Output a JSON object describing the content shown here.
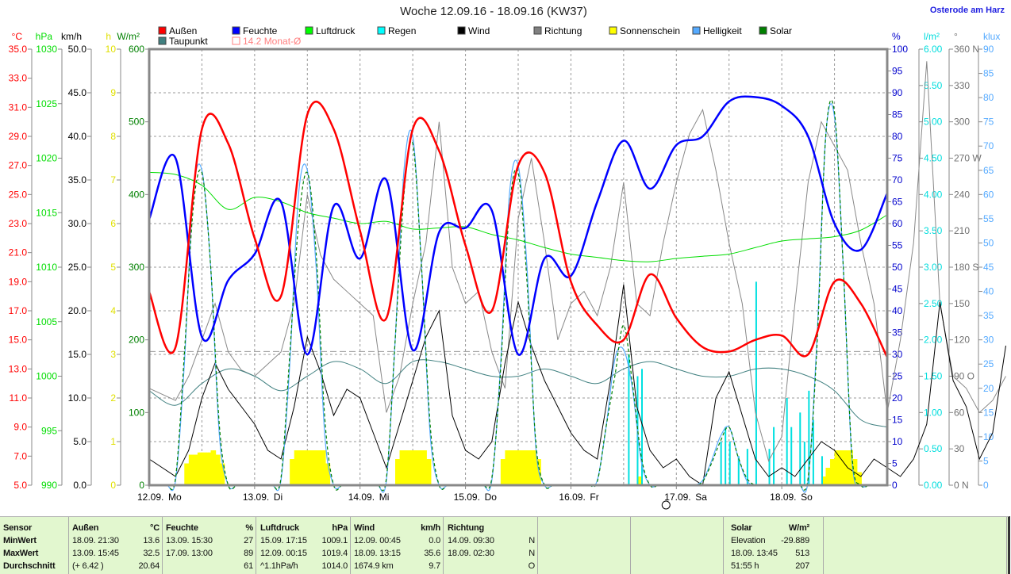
{
  "header": {
    "title": "Woche 12.09.16 - 18.09.16 (KW37)",
    "location": "Osterode am Harz"
  },
  "legend": [
    {
      "label": "Außen",
      "color": "#ff0000"
    },
    {
      "label": "Feuchte",
      "color": "#0000ff"
    },
    {
      "label": "Luftdruck",
      "color": "#00ff00"
    },
    {
      "label": "Regen",
      "color": "#00ffff"
    },
    {
      "label": "Wind",
      "color": "#000000"
    },
    {
      "label": "Richtung",
      "color": "#808080"
    },
    {
      "label": "Sonnenschein",
      "color": "#ffff00"
    },
    {
      "label": "Helligkeit",
      "color": "#55aaff"
    },
    {
      "label": "Solar",
      "color": "#008000"
    },
    {
      "label": "Taupunkt",
      "color": "#408080"
    },
    {
      "label": "14.2 Monat-Ø",
      "color": "#ff8080"
    }
  ],
  "chart_data": {
    "type": "line",
    "title": "Woche 12.09.16 - 18.09.16 (KW37)",
    "x_labels": [
      {
        "date": "12.09.",
        "day": "Mo"
      },
      {
        "date": "13.09.",
        "day": "Di"
      },
      {
        "date": "14.09.",
        "day": "Mi"
      },
      {
        "date": "15.09.",
        "day": "Do"
      },
      {
        "date": "16.09.",
        "day": "Fr"
      },
      {
        "date": "17.09.",
        "day": "Sa"
      },
      {
        "date": "18.09.",
        "day": "So"
      }
    ],
    "axes": {
      "temp": {
        "unit": "°C",
        "range": [
          5,
          35
        ],
        "step": 2,
        "color": "#ff0000"
      },
      "pressure": {
        "unit": "hPa",
        "range": [
          990,
          1030
        ],
        "step": 5,
        "color": "#00dd00"
      },
      "wind": {
        "unit": "km/h",
        "range": [
          0,
          50
        ],
        "step": 5,
        "color": "#000000"
      },
      "sunshine": {
        "unit": "h",
        "range": [
          0,
          10
        ],
        "step": 1,
        "color": "#dddd00"
      },
      "solar": {
        "unit": "W/m²",
        "range": [
          0,
          600
        ],
        "step": 100,
        "color": "#008000"
      },
      "humidity": {
        "unit": "%",
        "range": [
          0,
          100
        ],
        "step": 5,
        "color": "#0000cc"
      },
      "rain": {
        "unit": "l/m²",
        "range": [
          0,
          6
        ],
        "step": 0.5,
        "color": "#00dddd"
      },
      "direction": {
        "unit": "°",
        "range": [
          0,
          360
        ],
        "step": 30,
        "color": "#707070",
        "compass": {
          "0": "N",
          "90": "O",
          "180": "S",
          "270": "W",
          "360": "N"
        }
      },
      "brightness": {
        "unit": "klux",
        "range": [
          0,
          90
        ],
        "step": 5,
        "color": "#55aaff"
      }
    },
    "month_avg_temp": 14.2,
    "interval_hours": 6,
    "series": [
      {
        "name": "Außen",
        "axis": "temp",
        "values": [
          18.3,
          14.5,
          29.5,
          28.5,
          22.0,
          18.0,
          30.5,
          29.5,
          22.5,
          16.5,
          29.5,
          28.0,
          21.5,
          17.0,
          27.0,
          26.5,
          19.0,
          16.0,
          15.0,
          19.5,
          16.5,
          14.5,
          14.2,
          15.0,
          15.3,
          14.0,
          19.0,
          17.5,
          13.8
        ]
      },
      {
        "name": "Feuchte",
        "axis": "humidity",
        "values": [
          61,
          75,
          34,
          47,
          53,
          65,
          30,
          64,
          52,
          70,
          31,
          58,
          59,
          63,
          30,
          52,
          48,
          65,
          79,
          68,
          78,
          80,
          88,
          89,
          87,
          80,
          60,
          54,
          67
        ]
      },
      {
        "name": "Luftdruck",
        "axis": "pressure",
        "values": [
          1018.7,
          1018.5,
          1017.5,
          1015.3,
          1016.4,
          1016.0,
          1015.0,
          1014.5,
          1014.0,
          1014.2,
          1013.5,
          1013.6,
          1013.7,
          1013.0,
          1012.5,
          1011.8,
          1011.2,
          1010.9,
          1010.6,
          1010.5,
          1010.8,
          1011.0,
          1011.2,
          1011.8,
          1012.4,
          1012.6,
          1012.8,
          1013.4,
          1014.8
        ]
      },
      {
        "name": "Taupunkt",
        "axis": "temp",
        "values": [
          11.5,
          10.5,
          12.0,
          13.0,
          12.5,
          11.5,
          12.5,
          13.5,
          13.0,
          12.0,
          13.5,
          13.5,
          13.0,
          12.5,
          12.5,
          13.0,
          12.5,
          12.0,
          13.0,
          13.5,
          13.0,
          12.5,
          12.5,
          13.0,
          13.0,
          12.5,
          11.5,
          9.5,
          9.0
        ]
      },
      {
        "name": "Wind",
        "axis": "wind",
        "interval_hours": 3,
        "values": [
          3,
          2,
          1,
          4,
          10,
          14,
          11,
          9,
          7,
          4,
          3,
          9,
          17,
          13,
          8,
          11,
          10,
          6,
          2,
          7,
          12,
          17,
          20,
          8,
          4,
          3,
          5,
          14,
          21,
          16,
          12,
          9,
          6,
          4,
          3,
          12,
          23,
          9,
          4,
          2,
          3,
          1,
          0,
          10,
          13,
          8,
          3,
          1,
          2,
          1,
          3,
          5,
          4,
          2,
          1,
          3,
          2,
          1,
          3,
          7,
          21,
          12,
          9,
          3,
          6,
          16
        ]
      },
      {
        "name": "Richtung",
        "axis": "direction",
        "interval_hours": 3,
        "values": [
          80,
          75,
          70,
          90,
          120,
          150,
          110,
          95,
          90,
          100,
          110,
          150,
          240,
          190,
          170,
          160,
          150,
          140,
          60,
          90,
          150,
          200,
          300,
          180,
          150,
          160,
          110,
          80,
          220,
          270,
          200,
          120,
          150,
          160,
          140,
          180,
          250,
          150,
          140,
          200,
          250,
          290,
          310,
          260,
          200,
          150,
          60,
          20,
          40,
          150,
          250,
          300,
          280,
          260,
          200,
          150,
          60,
          120,
          200,
          350,
          150,
          90,
          80,
          60,
          70,
          90
        ]
      },
      {
        "name": "Solar",
        "axis": "solar",
        "interval_hours": 2,
        "values": [
          0,
          0,
          0,
          10,
          180,
          380,
          430,
          300,
          80,
          0,
          0,
          0,
          0,
          0,
          0,
          10,
          180,
          360,
          430,
          320,
          90,
          0,
          0,
          0,
          0,
          0,
          0,
          10,
          200,
          400,
          470,
          300,
          80,
          0,
          0,
          0,
          0,
          0,
          0,
          10,
          160,
          380,
          430,
          280,
          60,
          0,
          0,
          0,
          0,
          0,
          0,
          5,
          80,
          150,
          220,
          140,
          40,
          0,
          0,
          0,
          0,
          0,
          0,
          5,
          30,
          60,
          80,
          40,
          10,
          0,
          0,
          0,
          0,
          0,
          0,
          10,
          190,
          480,
          513,
          300,
          40,
          0,
          0,
          0
        ]
      },
      {
        "name": "Helligkeit",
        "axis": "brightness",
        "interval_hours": 2,
        "values": [
          0,
          0,
          0,
          1,
          25,
          60,
          65,
          45,
          10,
          0,
          0,
          0,
          0,
          0,
          0,
          1,
          25,
          60,
          65,
          45,
          10,
          0,
          0,
          0,
          0,
          0,
          0,
          1,
          30,
          65,
          72,
          45,
          10,
          0,
          0,
          0,
          0,
          0,
          0,
          1,
          25,
          60,
          66,
          45,
          8,
          0,
          0,
          0,
          0,
          0,
          0,
          1,
          12,
          26,
          28,
          20,
          5,
          0,
          0,
          0,
          0,
          0,
          0,
          1,
          5,
          10,
          12,
          6,
          1,
          0,
          0,
          0,
          0,
          0,
          0,
          1,
          30,
          72,
          76,
          45,
          5,
          0,
          0,
          0
        ]
      }
    ],
    "sunshine_hourly_h": [
      [
        0,
        0,
        0,
        0,
        0,
        0,
        0,
        0,
        0.5,
        0.7,
        0.7,
        0.75,
        0.75,
        0.75,
        0.8,
        0.7,
        0.5,
        0,
        0,
        0,
        0,
        0,
        0,
        0
      ],
      [
        0,
        0,
        0,
        0,
        0,
        0,
        0,
        0,
        0.6,
        0.8,
        0.8,
        0.8,
        0.8,
        0.8,
        0.8,
        0.8,
        0.5,
        0,
        0,
        0,
        0,
        0,
        0,
        0
      ],
      [
        0,
        0,
        0,
        0,
        0,
        0,
        0,
        0,
        0.6,
        0.8,
        0.8,
        0.8,
        0.8,
        0.8,
        0.8,
        0.6,
        0,
        0,
        0,
        0,
        0,
        0,
        0,
        0
      ],
      [
        0,
        0,
        0,
        0,
        0,
        0,
        0,
        0,
        0.6,
        0.8,
        0.8,
        0.8,
        0.8,
        0.8,
        0.8,
        0.8,
        0.6,
        0,
        0,
        0,
        0,
        0,
        0,
        0
      ],
      [
        0,
        0,
        0,
        0,
        0,
        0,
        0,
        0,
        0,
        0,
        0,
        0,
        0,
        0,
        0,
        0.2,
        0,
        0,
        0,
        0,
        0,
        0,
        0,
        0
      ],
      [
        0,
        0,
        0,
        0,
        0,
        0,
        0,
        0,
        0,
        0,
        0,
        0,
        0,
        0,
        0,
        0,
        0,
        0,
        0,
        0,
        0,
        0,
        0,
        0
      ],
      [
        0,
        0,
        0,
        0,
        0,
        0,
        0,
        0,
        0,
        0.2,
        0.4,
        0.6,
        0.8,
        0.8,
        0.8,
        0.8,
        0.6,
        0.3,
        0,
        0,
        0,
        0,
        0,
        0
      ]
    ],
    "rain_events": [
      {
        "day": 4,
        "hour": 13,
        "mm": 1.8
      },
      {
        "day": 4,
        "hour": 15,
        "mm": 1.5
      },
      {
        "day": 4,
        "hour": 16,
        "mm": 1.6
      },
      {
        "day": 5,
        "hour": 10,
        "mm": 0.6
      },
      {
        "day": 5,
        "hour": 11,
        "mm": 0.8
      },
      {
        "day": 5,
        "hour": 12,
        "mm": 0.6
      },
      {
        "day": 5,
        "hour": 14,
        "mm": 0.4
      },
      {
        "day": 5,
        "hour": 16,
        "mm": 0.5
      },
      {
        "day": 5,
        "hour": 18,
        "mm": 2.8
      },
      {
        "day": 5,
        "hour": 21,
        "mm": 0.5
      },
      {
        "day": 5,
        "hour": 22,
        "mm": 0.8
      },
      {
        "day": 6,
        "hour": 1,
        "mm": 1.2
      },
      {
        "day": 6,
        "hour": 2,
        "mm": 0.8
      },
      {
        "day": 6,
        "hour": 4,
        "mm": 1.0
      },
      {
        "day": 6,
        "hour": 5,
        "mm": 0.6
      },
      {
        "day": 6,
        "hour": 6,
        "mm": 1.3
      },
      {
        "day": 6,
        "hour": 7,
        "mm": 0.9
      },
      {
        "day": 6,
        "hour": 9,
        "mm": 0.4
      }
    ]
  },
  "summary": {
    "sensor": {
      "label": "Sensor",
      "rows": [
        "MinWert",
        "MaxWert",
        "Durchschnitt"
      ]
    },
    "aussen": {
      "label": "Außen",
      "unit": "°C",
      "rows": [
        [
          "18.09.  21:30",
          "13.6"
        ],
        [
          "13.09.  15:45",
          "32.5"
        ],
        [
          "(+ 6.42 )",
          "20.64"
        ]
      ]
    },
    "feuchte": {
      "label": "Feuchte",
      "unit": "%",
      "rows": [
        [
          "13.09.  15:30",
          "27"
        ],
        [
          "17.09.  13:00",
          "89"
        ],
        [
          "",
          "61"
        ]
      ]
    },
    "luftdruck": {
      "label": "Luftdruck",
      "unit": "hPa",
      "rows": [
        [
          "15.09.  17:15",
          "1009.1"
        ],
        [
          "12.09.  00:15",
          "1019.4"
        ],
        [
          "^1.1hPa/h",
          "1014.0"
        ]
      ]
    },
    "wind": {
      "label": "Wind",
      "unit": "km/h",
      "rows": [
        [
          "12.09.  00:45",
          "0.0"
        ],
        [
          "18.09.  13:15",
          "35.6"
        ],
        [
          "1674.9 km",
          "9.7"
        ]
      ]
    },
    "richtung": {
      "label": "Richtung",
      "unit": "",
      "rows": [
        [
          "14.09.  09:30",
          "N"
        ],
        [
          "18.09.  02:30",
          "N"
        ],
        [
          "",
          "O"
        ]
      ]
    },
    "solar": {
      "label": "Solar",
      "unit": "W/m²",
      "rows": [
        [
          "Elevation",
          "-29.889"
        ],
        [
          "18.09.  13:45",
          "513"
        ],
        [
          "51:55 h",
          "207"
        ]
      ]
    }
  }
}
